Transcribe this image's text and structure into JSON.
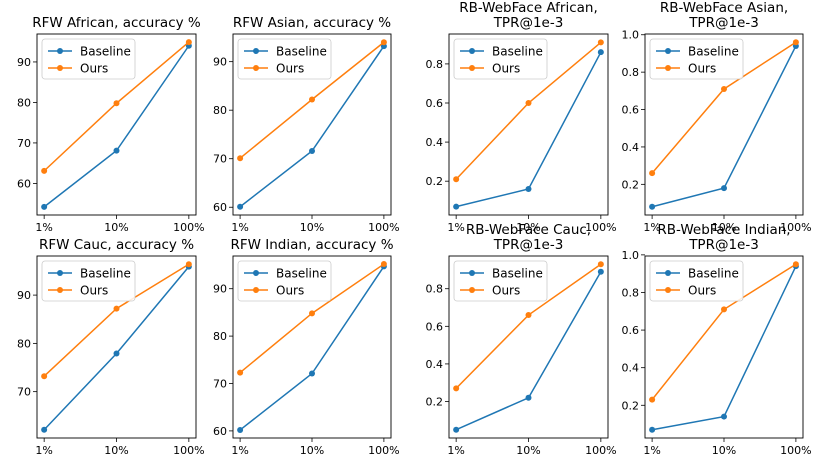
{
  "colors": {
    "baseline": "#1f77b4",
    "ours": "#ff7f0e"
  },
  "chart_data": [
    {
      "type": "line",
      "title": "RFW African, accuracy %",
      "categories": [
        "1%",
        "10%",
        "100%"
      ],
      "series": [
        {
          "name": "Baseline",
          "values": [
            54.2,
            68.1,
            94.0
          ]
        },
        {
          "name": "Ours",
          "values": [
            63.1,
            79.8,
            94.9
          ]
        }
      ],
      "yticks": [
        "60",
        "70",
        "80",
        "90"
      ],
      "ylim": [
        52.2,
        96.9
      ],
      "legend": "top-left"
    },
    {
      "type": "line",
      "title": "RFW Asian, accuracy %",
      "categories": [
        "1%",
        "10%",
        "100%"
      ],
      "series": [
        {
          "name": "Baseline",
          "values": [
            60.1,
            71.6,
            93.2
          ]
        },
        {
          "name": "Ours",
          "values": [
            70.1,
            82.2,
            94.0
          ]
        }
      ],
      "yticks": [
        "60",
        "70",
        "80",
        "90"
      ],
      "ylim": [
        58.4,
        95.7
      ],
      "legend": "top-left"
    },
    {
      "type": "line",
      "title": "RFW Cauc, accuracy %",
      "categories": [
        "1%",
        "10%",
        "100%"
      ],
      "series": [
        {
          "name": "Baseline",
          "values": [
            62.1,
            77.9,
            95.9
          ]
        },
        {
          "name": "Ours",
          "values": [
            73.2,
            87.2,
            96.4
          ]
        }
      ],
      "yticks": [
        "70",
        "80",
        "90"
      ],
      "ylim": [
        60.4,
        98.1
      ],
      "legend": "top-left"
    },
    {
      "type": "line",
      "title": "RFW Indian, accuracy %",
      "categories": [
        "1%",
        "10%",
        "100%"
      ],
      "series": [
        {
          "name": "Baseline",
          "values": [
            60.2,
            72.1,
            94.7
          ]
        },
        {
          "name": "Ours",
          "values": [
            72.3,
            84.8,
            95.2
          ]
        }
      ],
      "yticks": [
        "60",
        "70",
        "80",
        "90"
      ],
      "ylim": [
        58.5,
        96.9
      ],
      "legend": "top-left"
    },
    {
      "type": "line",
      "title": "RB-WebFace African,\nTPR@1e-3",
      "categories": [
        "1%",
        "10%",
        "100%"
      ],
      "series": [
        {
          "name": "Baseline",
          "values": [
            0.07,
            0.16,
            0.86
          ]
        },
        {
          "name": "Ours",
          "values": [
            0.21,
            0.6,
            0.91
          ]
        }
      ],
      "yticks": [
        "0.2",
        "0.4",
        "0.6",
        "0.8"
      ],
      "ylim": [
        0.027,
        0.953
      ],
      "legend": "top-left"
    },
    {
      "type": "line",
      "title": "RB-WebFace Asian,\nTPR@1e-3",
      "categories": [
        "1%",
        "10%",
        "100%"
      ],
      "series": [
        {
          "name": "Baseline",
          "values": [
            0.08,
            0.18,
            0.94
          ]
        },
        {
          "name": "Ours",
          "values": [
            0.26,
            0.71,
            0.96
          ]
        }
      ],
      "yticks": [
        "0.2",
        "0.4",
        "0.6",
        "0.8",
        "1.0"
      ],
      "ylim": [
        0.036,
        1.004
      ],
      "legend": "top-left"
    },
    {
      "type": "line",
      "title": "RB-WebFace Cauc,\nTPR@1e-3",
      "categories": [
        "1%",
        "10%",
        "100%"
      ],
      "series": [
        {
          "name": "Baseline",
          "values": [
            0.05,
            0.22,
            0.89
          ]
        },
        {
          "name": "Ours",
          "values": [
            0.27,
            0.66,
            0.93
          ]
        }
      ],
      "yticks": [
        "0.2",
        "0.4",
        "0.6",
        "0.8"
      ],
      "ylim": [
        0.006,
        0.974
      ],
      "legend": "top-left"
    },
    {
      "type": "line",
      "title": "RB-WebFace Indian,\nTPR@1e-3",
      "categories": [
        "1%",
        "10%",
        "100%"
      ],
      "series": [
        {
          "name": "Baseline",
          "values": [
            0.07,
            0.14,
            0.94
          ]
        },
        {
          "name": "Ours",
          "values": [
            0.23,
            0.71,
            0.95
          ]
        }
      ],
      "yticks": [
        "0.2",
        "0.4",
        "0.6",
        "0.8",
        "1.0"
      ],
      "ylim": [
        0.026,
        0.994
      ],
      "legend": "top-left"
    }
  ]
}
